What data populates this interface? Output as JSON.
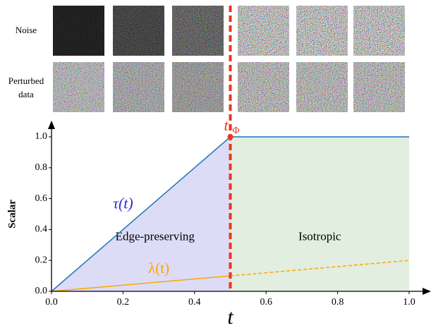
{
  "chart_data": {
    "type": "line",
    "image_rows": [
      "Noise",
      "Perturbed data"
    ],
    "xlabel": "t",
    "ylabel": "Scalar",
    "xlim": [
      0,
      1
    ],
    "ylim": [
      0,
      1
    ],
    "xticks": [
      {
        "value": 0,
        "label": "0.0"
      },
      {
        "value": 0.2,
        "label": "0.2"
      },
      {
        "value": 0.4,
        "label": "0.4"
      },
      {
        "value": 0.6,
        "label": "0.6"
      },
      {
        "value": 0.8,
        "label": "0.8"
      },
      {
        "value": 1,
        "label": "1.0"
      }
    ],
    "yticks": [
      {
        "value": 0,
        "label": "0.0"
      },
      {
        "value": 0.2,
        "label": "0.2"
      },
      {
        "value": 0.4,
        "label": "0.4"
      },
      {
        "value": 0.6,
        "label": "0.6"
      },
      {
        "value": 0.8,
        "label": "0.8"
      },
      {
        "value": 1,
        "label": "1.0"
      }
    ],
    "series": [
      {
        "name": "τ(t)",
        "color": "#1f77b4",
        "label_color": "#2b2bd9",
        "x": [
          0,
          0.5,
          1
        ],
        "values": [
          0,
          1,
          1
        ]
      },
      {
        "name": "λ(t)",
        "color": "#ffa500",
        "label_color": "#ffa500",
        "x": [
          0,
          0.5,
          1
        ],
        "values": [
          0,
          0.1,
          0.2
        ]
      }
    ],
    "threshold": {
      "value": 0.5,
      "label": "t",
      "sub": "Φ",
      "color": "#ee3322"
    },
    "regions": [
      {
        "label": "Edge-preserving",
        "from": 0,
        "to": 0.5,
        "color": "#dcdcf6"
      },
      {
        "label": "Isotropic",
        "from": 0.5,
        "to": 1,
        "color": "#e2eedf"
      }
    ]
  }
}
